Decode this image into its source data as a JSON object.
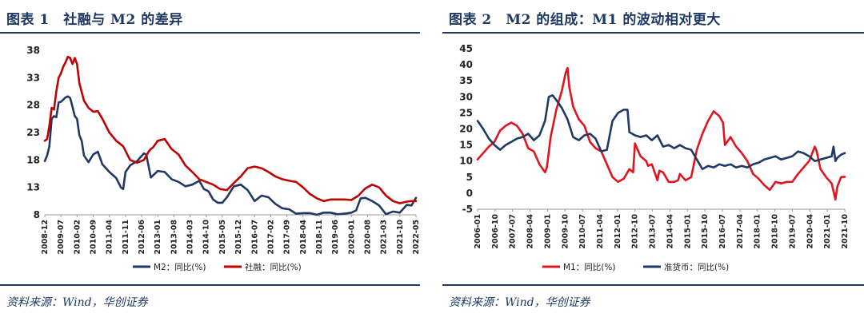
{
  "chart_data": [
    {
      "type": "line",
      "title": "图表 1　社融与 M2 的差异",
      "source": "资料来源：Wind，华创证券",
      "xlabel": "",
      "ylabel": "",
      "ylim": [
        8,
        38
      ],
      "yticks": [
        8,
        13,
        18,
        23,
        28,
        33,
        38
      ],
      "xlim": [
        2008.917,
        2022.333
      ],
      "x_tick_labels": [
        "2008-12",
        "2009-07",
        "2010-02",
        "2010-09",
        "2011-04",
        "2011-11",
        "2012-06",
        "2013-01",
        "2013-08",
        "2014-03",
        "2014-10",
        "2015-05",
        "2015-12",
        "2016-07",
        "2017-02",
        "2017-09",
        "2018-04",
        "2018-11",
        "2019-06",
        "2020-01",
        "2020-08",
        "2021-03",
        "2021-10",
        "2022-05"
      ],
      "legend_position": "bottom-center",
      "series": [
        {
          "name": "M2：同比(%)",
          "color": "#1f3864",
          "x": [
            2008.917,
            2009.0,
            2009.083,
            2009.167,
            2009.25,
            2009.333,
            2009.417,
            2009.5,
            2009.583,
            2009.667,
            2009.75,
            2009.833,
            2009.917,
            2010.0,
            2010.083,
            2010.167,
            2010.25,
            2010.333,
            2010.5,
            2010.667,
            2010.833,
            2011.0,
            2011.25,
            2011.5,
            2011.667,
            2011.75,
            2011.833,
            2012.0,
            2012.25,
            2012.5,
            2012.583,
            2012.75,
            2013.0,
            2013.25,
            2013.5,
            2013.75,
            2014.0,
            2014.25,
            2014.5,
            2014.667,
            2014.833,
            2015.0,
            2015.167,
            2015.333,
            2015.5,
            2015.75,
            2016.0,
            2016.25,
            2016.5,
            2016.75,
            2017.0,
            2017.25,
            2017.5,
            2017.75,
            2018.0,
            2018.25,
            2018.5,
            2018.75,
            2019.0,
            2019.25,
            2019.5,
            2019.75,
            2020.0,
            2020.167,
            2020.333,
            2020.5,
            2020.75,
            2021.0,
            2021.25,
            2021.5,
            2021.75,
            2022.0,
            2022.167,
            2022.333
          ],
          "values": [
            17.8,
            18.8,
            20.5,
            25.5,
            26.0,
            25.8,
            28.5,
            28.6,
            29.0,
            29.4,
            29.6,
            29.3,
            27.7,
            26.0,
            25.5,
            22.5,
            21.5,
            18.8,
            17.6,
            19.0,
            19.5,
            17.2,
            15.8,
            14.7,
            13.0,
            12.7,
            15.8,
            17.0,
            17.8,
            19.2,
            19.0,
            14.8,
            16.0,
            15.8,
            14.5,
            14.0,
            13.2,
            13.5,
            14.2,
            12.7,
            12.3,
            10.8,
            10.2,
            10.2,
            11.2,
            13.2,
            13.5,
            12.5,
            10.5,
            11.5,
            11.2,
            10.0,
            9.2,
            9.0,
            8.2,
            8.3,
            8.3,
            8.0,
            8.4,
            8.4,
            8.1,
            8.2,
            8.4,
            8.8,
            11.0,
            11.1,
            10.5,
            9.7,
            8.1,
            8.6,
            8.4,
            9.8,
            9.7,
            11.1
          ]
        },
        {
          "name": "社融：同比(%)",
          "color": "#c00000",
          "x": [
            2008.917,
            2009.0,
            2009.083,
            2009.167,
            2009.25,
            2009.333,
            2009.417,
            2009.5,
            2009.583,
            2009.667,
            2009.75,
            2009.833,
            2009.917,
            2010.0,
            2010.083,
            2010.167,
            2010.333,
            2010.5,
            2010.667,
            2010.833,
            2011.0,
            2011.25,
            2011.5,
            2011.75,
            2012.0,
            2012.25,
            2012.5,
            2012.667,
            2012.75,
            2012.833,
            2013.0,
            2013.25,
            2013.5,
            2013.75,
            2014.0,
            2014.25,
            2014.5,
            2014.75,
            2015.0,
            2015.25,
            2015.5,
            2015.75,
            2016.0,
            2016.25,
            2016.5,
            2016.75,
            2017.0,
            2017.25,
            2017.5,
            2017.75,
            2018.0,
            2018.25,
            2018.5,
            2018.75,
            2019.0,
            2019.25,
            2019.5,
            2019.75,
            2020.0,
            2020.25,
            2020.5,
            2020.75,
            2021.0,
            2021.25,
            2021.5,
            2021.75,
            2022.0,
            2022.167,
            2022.333
          ],
          "values": [
            21.5,
            21.8,
            24.2,
            27.5,
            27.2,
            30.5,
            33.0,
            33.8,
            35.0,
            35.8,
            36.8,
            36.6,
            35.5,
            36.6,
            35.5,
            32.0,
            28.8,
            27.5,
            26.8,
            26.9,
            25.5,
            23.0,
            21.5,
            20.5,
            18.0,
            17.5,
            18.0,
            19.5,
            20.0,
            20.3,
            21.5,
            21.8,
            20.0,
            19.0,
            17.0,
            15.8,
            14.5,
            14.0,
            13.5,
            12.7,
            12.5,
            13.8,
            15.0,
            16.5,
            16.8,
            16.5,
            15.8,
            15.0,
            14.5,
            14.2,
            14.0,
            13.0,
            11.8,
            11.0,
            10.5,
            10.8,
            10.8,
            10.8,
            10.7,
            11.5,
            12.8,
            13.5,
            13.0,
            11.5,
            10.5,
            10.1,
            10.4,
            10.5,
            10.5
          ]
        }
      ]
    },
    {
      "type": "line",
      "title": "图表 2　M2 的组成：M1 的波动相对更大",
      "source": "资料来源：Wind，华创证券",
      "xlabel": "",
      "ylabel": "",
      "ylim": [
        -5,
        45
      ],
      "yticks": [
        -5,
        0,
        5,
        10,
        15,
        20,
        25,
        30,
        35,
        40,
        45
      ],
      "xlim": [
        2006.0,
        2022.333
      ],
      "x_tick_labels": [
        "2006-01",
        "2006-10",
        "2007-07",
        "2008-04",
        "2009-01",
        "2009-10",
        "2010-07",
        "2011-04",
        "2012-01",
        "2012-10",
        "2013-07",
        "2014-04",
        "2015-01",
        "2015-10",
        "2016-07",
        "2017-04",
        "2018-01",
        "2018-10",
        "2019-07",
        "2020-04",
        "2021-01",
        "2021-10"
      ],
      "legend_position": "bottom-center",
      "series": [
        {
          "name": "M1：同比(%)",
          "color": "#e0141e",
          "x": [
            2006.0,
            2006.25,
            2006.5,
            2006.75,
            2007.0,
            2007.25,
            2007.5,
            2007.75,
            2008.0,
            2008.25,
            2008.5,
            2008.75,
            2009.0,
            2009.083,
            2009.25,
            2009.5,
            2009.75,
            2009.917,
            2010.0,
            2010.083,
            2010.25,
            2010.5,
            2010.75,
            2011.0,
            2011.25,
            2011.5,
            2011.75,
            2012.0,
            2012.25,
            2012.5,
            2012.75,
            2012.917,
            2013.0,
            2013.25,
            2013.5,
            2013.583,
            2013.75,
            2014.0,
            2014.083,
            2014.25,
            2014.333,
            2014.5,
            2014.75,
            2014.917,
            2015.0,
            2015.25,
            2015.5,
            2015.75,
            2016.0,
            2016.25,
            2016.5,
            2016.75,
            2016.917,
            2017.0,
            2017.25,
            2017.5,
            2017.75,
            2018.0,
            2018.25,
            2018.5,
            2018.75,
            2019.0,
            2019.25,
            2019.5,
            2019.75,
            2020.0,
            2020.25,
            2020.5,
            2020.75,
            2021.0,
            2021.083,
            2021.25,
            2021.5,
            2021.75,
            2021.917,
            2022.0,
            2022.167,
            2022.333
          ],
          "values": [
            10.5,
            12.5,
            14.5,
            16.0,
            19.5,
            21.0,
            22.0,
            21.0,
            18.5,
            14.0,
            13.0,
            9.0,
            6.5,
            8.0,
            17.5,
            26.0,
            32.0,
            37.5,
            39.0,
            33.0,
            27.0,
            23.0,
            21.0,
            16.0,
            14.0,
            13.0,
            9.0,
            5.0,
            3.5,
            4.5,
            7.5,
            6.5,
            15.5,
            11.5,
            10.0,
            8.5,
            9.0,
            4.0,
            7.0,
            6.5,
            5.5,
            3.5,
            3.5,
            4.0,
            6.0,
            4.0,
            5.0,
            13.5,
            18.5,
            22.5,
            25.5,
            24.0,
            22.0,
            15.0,
            17.5,
            14.5,
            12.5,
            10.0,
            6.0,
            4.5,
            2.5,
            1.0,
            3.5,
            3.0,
            3.5,
            3.5,
            6.0,
            8.0,
            10.0,
            14.5,
            13.0,
            7.5,
            5.0,
            3.0,
            -2.0,
            2.0,
            5.0,
            5.1
          ]
        },
        {
          "name": "准货币：同比(%)",
          "color": "#1f3864",
          "x": [
            2006.0,
            2006.25,
            2006.5,
            2006.75,
            2007.0,
            2007.25,
            2007.5,
            2007.75,
            2008.0,
            2008.25,
            2008.5,
            2008.75,
            2009.0,
            2009.167,
            2009.333,
            2009.5,
            2009.75,
            2010.0,
            2010.25,
            2010.5,
            2010.75,
            2011.0,
            2011.25,
            2011.5,
            2011.75,
            2012.0,
            2012.25,
            2012.5,
            2012.667,
            2012.75,
            2013.0,
            2013.25,
            2013.5,
            2013.75,
            2014.0,
            2014.25,
            2014.5,
            2014.75,
            2015.0,
            2015.25,
            2015.5,
            2015.75,
            2016.0,
            2016.25,
            2016.5,
            2016.75,
            2017.0,
            2017.25,
            2017.5,
            2017.75,
            2018.0,
            2018.25,
            2018.5,
            2018.75,
            2019.0,
            2019.25,
            2019.5,
            2019.75,
            2020.0,
            2020.25,
            2020.5,
            2020.75,
            2021.0,
            2021.25,
            2021.5,
            2021.75,
            2021.833,
            2021.917,
            2022.0,
            2022.167,
            2022.333
          ],
          "values": [
            22.5,
            20.0,
            17.0,
            15.0,
            13.5,
            15.0,
            16.0,
            17.0,
            17.5,
            18.5,
            16.5,
            18.0,
            22.5,
            30.0,
            30.5,
            29.0,
            26.5,
            23.0,
            17.5,
            16.5,
            18.0,
            18.5,
            17.0,
            13.0,
            13.5,
            22.5,
            25.0,
            26.0,
            26.0,
            19.0,
            18.0,
            17.5,
            18.0,
            16.5,
            18.0,
            14.5,
            15.0,
            14.0,
            15.0,
            14.0,
            13.5,
            10.5,
            7.5,
            8.5,
            8.0,
            9.0,
            8.5,
            9.0,
            8.0,
            8.5,
            8.0,
            9.0,
            9.5,
            10.5,
            11.0,
            11.5,
            10.5,
            11.0,
            11.5,
            13.0,
            12.5,
            11.5,
            10.0,
            10.5,
            11.0,
            11.5,
            14.5,
            10.0,
            11.0,
            12.0,
            12.5
          ]
        }
      ]
    }
  ]
}
